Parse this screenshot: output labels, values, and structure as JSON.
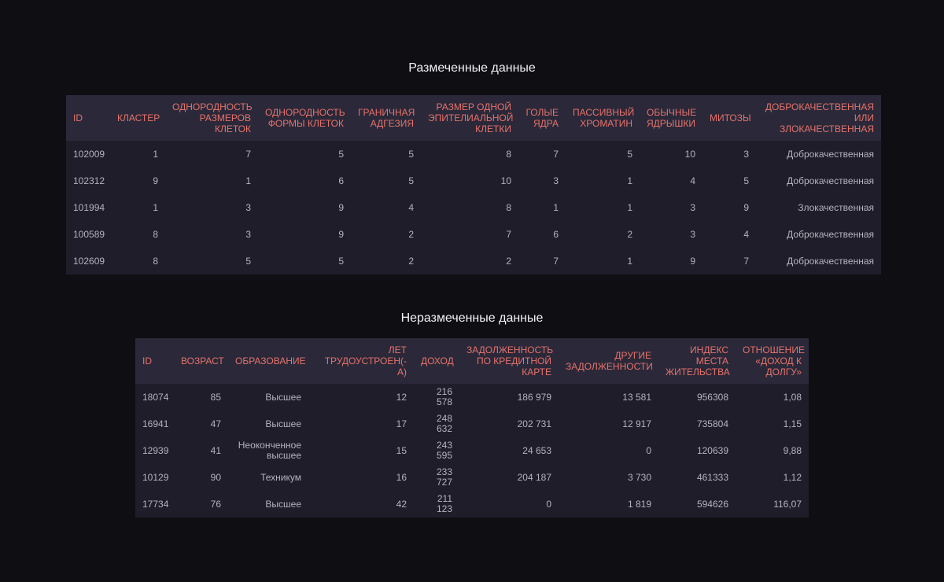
{
  "tables": [
    {
      "title": "Размеченные данные",
      "columns": [
        "ID",
        "КЛАСТЕР",
        "ОДНОРОДНОСТЬ РАЗМЕРОВ КЛЕТОК",
        "ОДНОРОДНОСТЬ ФОРМЫ КЛЕТОК",
        "ГРАНИЧНАЯ АДГЕЗИЯ",
        "РАЗМЕР ОДНОЙ ЭПИТЕЛИАЛЬНОЙ КЛЕТКИ",
        "ГОЛЫЕ ЯДРА",
        "ПАССИВНЫЙ ХРОМАТИН",
        "ОБЫЧНЫЕ ЯДРЫШКИ",
        "МИТОЗЫ",
        "ДОБРОКАЧЕСТВЕННАЯ ИЛИ ЗЛОКАЧЕСТВЕННАЯ"
      ],
      "rows": [
        [
          "102009",
          "1",
          "7",
          "5",
          "5",
          "8",
          "7",
          "5",
          "10",
          "3",
          "Доброкачественная"
        ],
        [
          "102312",
          "9",
          "1",
          "6",
          "5",
          "10",
          "3",
          "1",
          "4",
          "5",
          "Доброкачественная"
        ],
        [
          "101994",
          "1",
          "3",
          "9",
          "4",
          "8",
          "1",
          "1",
          "3",
          "9",
          "Злокачественная"
        ],
        [
          "100589",
          "8",
          "3",
          "9",
          "2",
          "7",
          "6",
          "2",
          "3",
          "4",
          "Доброкачественная"
        ],
        [
          "102609",
          "8",
          "5",
          "5",
          "2",
          "2",
          "7",
          "1",
          "9",
          "7",
          "Доброкачественная"
        ]
      ]
    },
    {
      "title": "Неразмеченные данные",
      "columns": [
        "ID",
        "ВОЗРАСТ",
        "ОБРАЗОВАНИЕ",
        "ЛЕТ ТРУДОУСТРОЕН(-А)",
        "ДОХОД",
        "ЗАДОЛЖЕННОСТЬ ПО КРЕДИТНОЙ КАРТЕ",
        "ДРУГИЕ ЗАДОЛЖЕННОСТИ",
        "ИНДЕКС МЕСТА ЖИТЕЛЬСТВА",
        "ОТНОШЕНИЕ «ДОХОД К ДОЛГУ»"
      ],
      "rows": [
        [
          "18074",
          "85",
          "Высшее",
          "12",
          "216 578",
          "186 979",
          "13 581",
          "956308",
          "1,08"
        ],
        [
          "16941",
          "47",
          "Высшее",
          "17",
          "248 632",
          "202 731",
          "12 917",
          "735804",
          "1,15"
        ],
        [
          "12939",
          "41",
          "Неоконченное высшее",
          "15",
          "243 595",
          "24 653",
          "0",
          "120639",
          "9,88"
        ],
        [
          "10129",
          "90",
          "Техникум",
          "16",
          "233 727",
          "204 187",
          "3 730",
          "461333",
          "1,12"
        ],
        [
          "17734",
          "76",
          "Высшее",
          "42",
          "211 123",
          "0",
          "1 819",
          "594626",
          "116,07"
        ]
      ]
    }
  ]
}
